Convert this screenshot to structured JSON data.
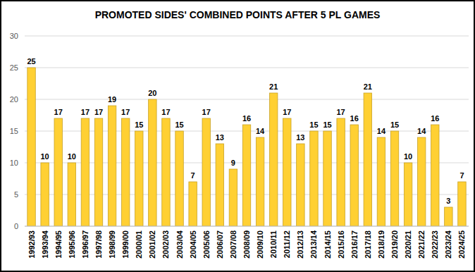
{
  "chart_data": {
    "type": "bar",
    "title": "PROMOTED SIDES' COMBINED POINTS AFTER 5 PL GAMES",
    "categories": [
      "1992/93",
      "1993/94",
      "1994/95",
      "1995/96",
      "1996/97",
      "1997/98",
      "1998/99",
      "1999/00",
      "2000/01",
      "2001/02",
      "2002/03",
      "2003/04",
      "2004/05",
      "2005/06",
      "2006/07",
      "2007/08",
      "2008/09",
      "2009/10",
      "2010/11",
      "2011/12",
      "2012/13",
      "2013/14",
      "2014/15",
      "2015/16",
      "2016/17",
      "2017/18",
      "2018/19",
      "2019/20",
      "2020/21",
      "2021/22",
      "2022/23",
      "2023/24",
      "2024/25"
    ],
    "values": [
      25,
      10,
      17,
      10,
      17,
      17,
      19,
      17,
      15,
      20,
      17,
      15,
      7,
      17,
      13,
      9,
      16,
      14,
      21,
      17,
      13,
      15,
      15,
      17,
      16,
      21,
      14,
      15,
      10,
      14,
      16,
      3,
      7
    ],
    "color": "#ffd033",
    "ylim": [
      0,
      30
    ],
    "yticks": [
      0,
      5,
      10,
      15,
      20,
      25,
      30
    ],
    "grid": true,
    "data_labels": true
  }
}
